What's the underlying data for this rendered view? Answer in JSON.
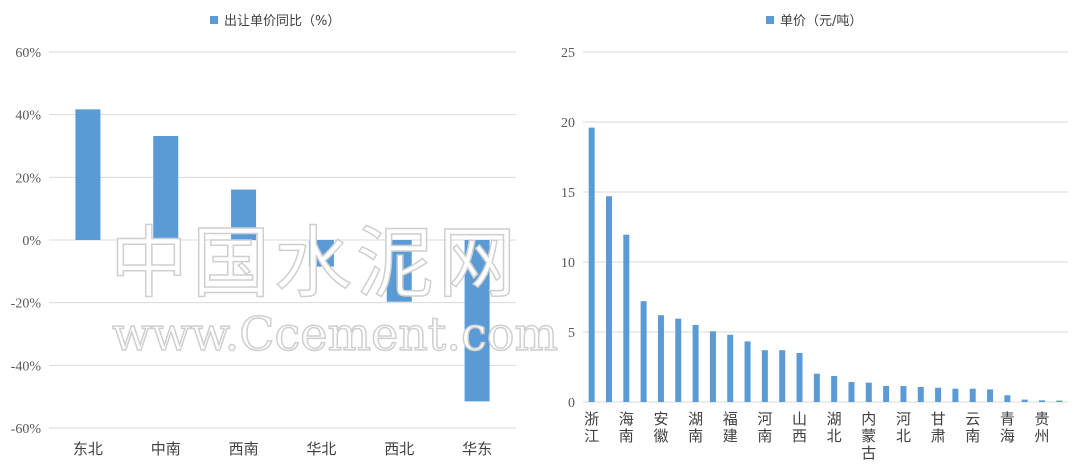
{
  "chart_data": [
    {
      "type": "bar",
      "legend": "出让单价同比（%）",
      "legend_placement": "top",
      "categories": [
        "东北",
        "中南",
        "西南",
        "华北",
        "西北",
        "华东"
      ],
      "values": [
        41.7,
        33.2,
        16.1,
        -8.5,
        -19.7,
        -51.5
      ],
      "unit": "%",
      "ylim": [
        -60,
        60
      ],
      "yticks": [
        -60,
        -40,
        -20,
        0,
        20,
        40,
        60
      ],
      "grid": true,
      "color": "#5b9bd5"
    },
    {
      "type": "bar",
      "legend": "单价（元/吨）",
      "legend_placement": "top",
      "categories": [
        "浙江",
        "",
        "海南",
        "",
        "安徽",
        "",
        "湖南",
        "",
        "福建",
        "",
        "河南",
        "",
        "山西",
        "",
        "湖北",
        "",
        "内蒙古",
        "",
        "河北",
        "",
        "甘肃",
        "",
        "云南",
        "",
        "青海",
        "",
        "贵州",
        ""
      ],
      "values": [
        19.6,
        14.7,
        11.95,
        7.2,
        6.2,
        5.95,
        5.5,
        5.05,
        4.8,
        4.33,
        3.7,
        3.7,
        3.5,
        2.02,
        1.86,
        1.43,
        1.38,
        1.14,
        1.14,
        1.07,
        1.02,
        0.95,
        0.95,
        0.9,
        0.48,
        0.17,
        0.12,
        0.1
      ],
      "ylim": [
        0,
        25
      ],
      "yticks": [
        0,
        5,
        10,
        15,
        20,
        25
      ],
      "grid": true,
      "color": "#5b9bd5"
    }
  ],
  "watermark": {
    "cn": "中国水泥网",
    "url": "www.Ccement.com"
  }
}
